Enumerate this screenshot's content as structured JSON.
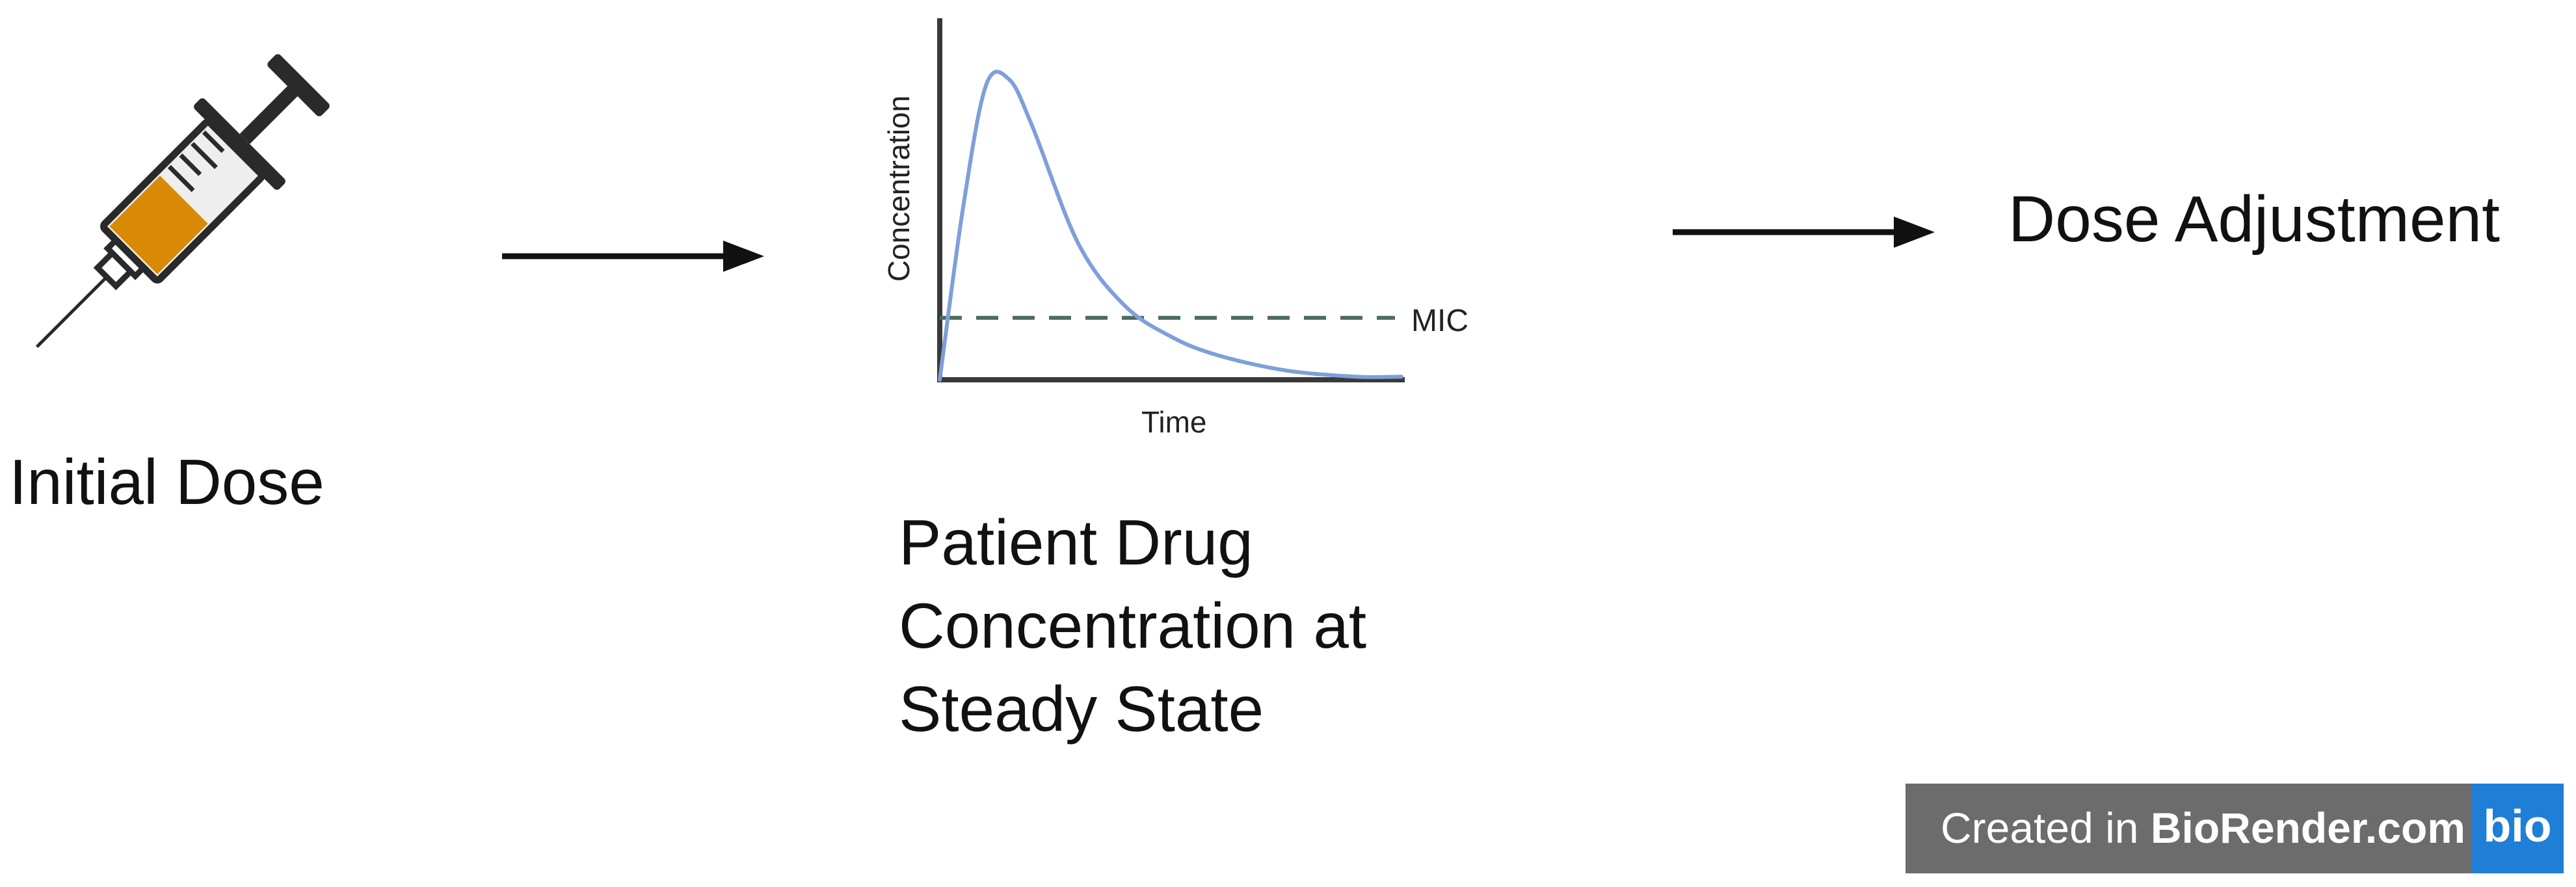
{
  "steps": {
    "initial_dose": "Initial Dose",
    "patient_lines": [
      "Patient Drug",
      "Concentration at",
      "Steady State"
    ],
    "dose_adjustment": "Dose Adjustment"
  },
  "chart_data": {
    "type": "line",
    "xlabel": "Time",
    "ylabel": "Concentration",
    "annotations": [
      "MIC"
    ],
    "ticks": "none",
    "series": [
      {
        "x": [
          0,
          0.05,
          0.1,
          0.15,
          0.2,
          0.3,
          0.4,
          0.5,
          0.6,
          0.75,
          0.9,
          1.0
        ],
        "y": [
          0,
          0.55,
          0.95,
          0.97,
          0.82,
          0.44,
          0.24,
          0.14,
          0.08,
          0.03,
          0.01,
          0.01
        ],
        "color": "#7f9fd9"
      }
    ],
    "reference_line": {
      "label": "MIC",
      "y": 0.2,
      "style": "dashed",
      "color": "#4d6b5f"
    },
    "xlim": [
      0,
      1
    ],
    "ylim": [
      0,
      1.1
    ]
  },
  "badge": {
    "prefix": "Created in ",
    "brand": "BioRender.com",
    "logo": "bio"
  },
  "colors": {
    "curve": "#7f9fd9",
    "mic_line": "#4d6b5f",
    "arrow": "#111111",
    "syringe_fill": "#d88a06",
    "syringe_outline": "#2a2a2a",
    "badge_bg": "#6c6c6c",
    "badge_logo": "#1f7fd6"
  },
  "icons": [
    "syringe-icon",
    "right-arrow-icon"
  ]
}
